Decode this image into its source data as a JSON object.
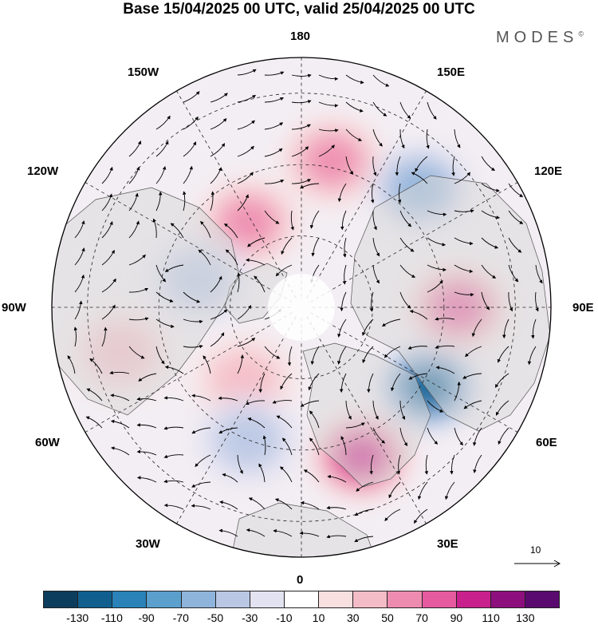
{
  "header": {
    "title": "Base 15/04/2025 00 UTC, valid 25/04/2025 00 UTC",
    "brand": "MODES",
    "brand_mark": "©"
  },
  "map": {
    "projection": "north-polar-stereographic",
    "longitude_labels": [
      {
        "id": "lon-180",
        "text": "180"
      },
      {
        "id": "lon-150e",
        "text": "150E"
      },
      {
        "id": "lon-120e",
        "text": "120E"
      },
      {
        "id": "lon-90e",
        "text": "90E"
      },
      {
        "id": "lon-60e",
        "text": "60E"
      },
      {
        "id": "lon-30e",
        "text": "30E"
      },
      {
        "id": "lon-0",
        "text": "0"
      },
      {
        "id": "lon-30w",
        "text": "30W"
      },
      {
        "id": "lon-60w",
        "text": "60W"
      },
      {
        "id": "lon-90w",
        "text": "90W"
      },
      {
        "id": "lon-120w",
        "text": "120W"
      },
      {
        "id": "lon-150w",
        "text": "150W"
      }
    ],
    "anomaly_centers": [
      {
        "name": "anomaly-blue-60e",
        "lon_deg": 58,
        "colat_deg": 42,
        "value": -110
      },
      {
        "name": "anomaly-pink-30e",
        "lon_deg": 22,
        "colat_deg": 45,
        "value": 90
      },
      {
        "name": "anomaly-pink-90e",
        "lon_deg": 90,
        "colat_deg": 44,
        "value": 70
      },
      {
        "name": "anomaly-pink-165e",
        "lon_deg": 168,
        "colat_deg": 42,
        "value": 50
      },
      {
        "name": "anomaly-blue-135e",
        "lon_deg": 135,
        "colat_deg": 47,
        "value": -50
      },
      {
        "name": "anomaly-pink-150w",
        "lon_deg": -148,
        "colat_deg": 28,
        "value": 50
      },
      {
        "name": "anomaly-blue-100w",
        "lon_deg": -105,
        "colat_deg": 30,
        "value": -30
      },
      {
        "name": "anomaly-pink-75w",
        "lon_deg": -76,
        "colat_deg": 52,
        "value": 30
      },
      {
        "name": "anomaly-pink-40w",
        "lon_deg": -38,
        "colat_deg": 26,
        "value": 30
      },
      {
        "name": "anomaly-blue-30w",
        "lon_deg": -22,
        "colat_deg": 40,
        "value": -30
      }
    ]
  },
  "reference_vector": {
    "label": "10"
  },
  "colorbar": {
    "colors": [
      "#0d3d5c",
      "#105f8f",
      "#2a82b8",
      "#5b9fcd",
      "#8fb4db",
      "#b9c7e4",
      "#e3e2f1",
      "#ffffff",
      "#f8dfe0",
      "#f4bcc6",
      "#ee8cb0",
      "#e65aa0",
      "#c8208c",
      "#8c0f7d",
      "#5a0a6e"
    ],
    "ticks": [
      "-130",
      "-110",
      "-90",
      "-70",
      "-50",
      "-30",
      "-10",
      "10",
      "30",
      "50",
      "70",
      "90",
      "110",
      "130"
    ]
  }
}
